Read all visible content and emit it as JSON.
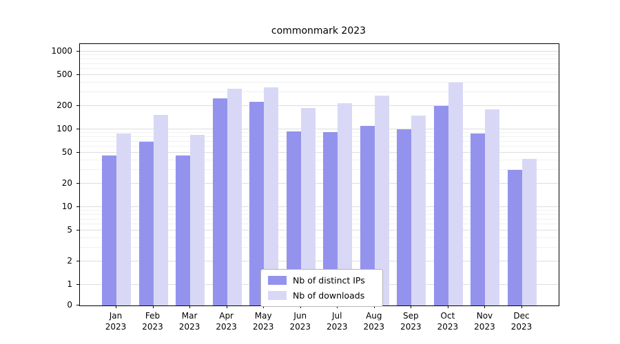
{
  "title": "commonmark 2023",
  "chart_data": {
    "type": "bar",
    "title": "commonmark 2023",
    "yscale": "symlog",
    "grid": true,
    "legend_position": "lower center",
    "ylim": [
      0,
      1000
    ],
    "yticks": [
      0,
      1,
      2,
      5,
      10,
      20,
      50,
      100,
      200,
      500,
      1000
    ],
    "categories": [
      "Jan",
      "Feb",
      "Mar",
      "Apr",
      "May",
      "Jun",
      "Jul",
      "Aug",
      "Sep",
      "Oct",
      "Nov",
      "Dec"
    ],
    "year": "2023",
    "series": [
      {
        "name": "Nb of distinct IPs",
        "color": "#9393ed",
        "values": [
          46,
          70,
          46,
          250,
          225,
          95,
          92,
          110,
          100,
          200,
          88,
          30
        ]
      },
      {
        "name": "Nb of downloads",
        "color": "#d8d8f6",
        "values": [
          88,
          155,
          85,
          330,
          350,
          190,
          215,
          270,
          150,
          400,
          180,
          42
        ]
      }
    ]
  }
}
